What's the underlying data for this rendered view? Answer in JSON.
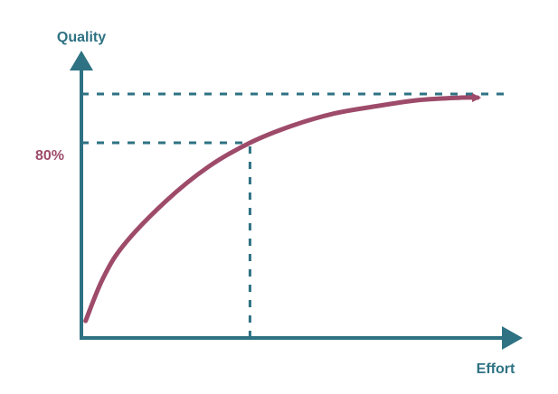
{
  "colors": {
    "axis": "#2e7283",
    "curve": "#9e4b6a",
    "ref_label": "#9e4b6a",
    "axis_title": "#2e7283",
    "background": "#ffffff"
  },
  "chart_data": {
    "type": "line",
    "title": "",
    "xlabel": "Effort",
    "ylabel": "Quality",
    "x_tick_labels": [],
    "y_tick_labels": [],
    "annotations": [
      {
        "text": "80%",
        "axis": "y",
        "y": 0.8,
        "x_drop": 0.4
      }
    ],
    "reference_lines": [
      {
        "type": "horizontal",
        "y": 1.0,
        "style": "dashed"
      },
      {
        "type": "horizontal",
        "y": 0.8,
        "from_x": 0,
        "to_x": 0.4,
        "style": "dashed"
      },
      {
        "type": "vertical",
        "x": 0.4,
        "from_y": 0,
        "to_y": 0.8,
        "style": "dashed"
      }
    ],
    "series": [
      {
        "x": [
          0.01,
          0.05,
          0.1,
          0.2,
          0.3,
          0.4,
          0.5,
          0.6,
          0.7,
          0.8,
          0.9,
          0.94
        ],
        "values": [
          0.07,
          0.24,
          0.38,
          0.56,
          0.7,
          0.8,
          0.87,
          0.92,
          0.95,
          0.975,
          0.985,
          0.985
        ]
      }
    ],
    "xlim": [
      0,
      1
    ],
    "ylim": [
      0,
      1
    ],
    "grid": false,
    "legend": "none"
  }
}
